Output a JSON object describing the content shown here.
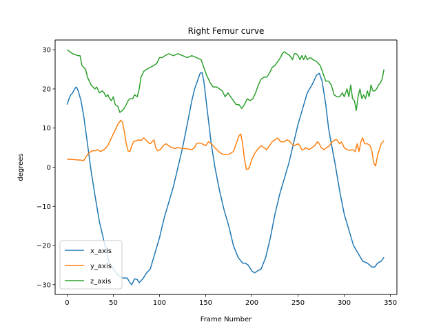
{
  "chart_data": {
    "type": "line",
    "title": "Right Femur curve",
    "xlabel": "Frame Number",
    "ylabel": "degrees",
    "xlim": [
      -13,
      357
    ],
    "ylim": [
      -32.5,
      32.5
    ],
    "xticks": [
      0,
      50,
      100,
      150,
      200,
      250,
      300,
      350
    ],
    "yticks": [
      -30,
      -20,
      -10,
      0,
      10,
      20,
      30
    ],
    "grid": false,
    "legend_position": "lower-left",
    "series": [
      {
        "name": "x_axis",
        "color": "#1f77b4",
        "points": [
          [
            0,
            16
          ],
          [
            2,
            17.5
          ],
          [
            4,
            18.5
          ],
          [
            6,
            19
          ],
          [
            8,
            20
          ],
          [
            10,
            20.5
          ],
          [
            12,
            19.5
          ],
          [
            15,
            17
          ],
          [
            18,
            13
          ],
          [
            22,
            6
          ],
          [
            26,
            -1
          ],
          [
            30,
            -7
          ],
          [
            35,
            -14
          ],
          [
            40,
            -19
          ],
          [
            45,
            -24
          ],
          [
            50,
            -26
          ],
          [
            55,
            -27.5
          ],
          [
            60,
            -28.3
          ],
          [
            65,
            -28.3
          ],
          [
            68,
            -29.5
          ],
          [
            70,
            -30
          ],
          [
            73,
            -28.5
          ],
          [
            76,
            -28.7
          ],
          [
            78,
            -29.5
          ],
          [
            82,
            -28.5
          ],
          [
            86,
            -27
          ],
          [
            90,
            -26
          ],
          [
            95,
            -22
          ],
          [
            100,
            -18
          ],
          [
            105,
            -13
          ],
          [
            110,
            -9
          ],
          [
            115,
            -5
          ],
          [
            120,
            0
          ],
          [
            125,
            5
          ],
          [
            130,
            11
          ],
          [
            135,
            17
          ],
          [
            138,
            20
          ],
          [
            141,
            22
          ],
          [
            144,
            24
          ],
          [
            146,
            24.2
          ],
          [
            148,
            22
          ],
          [
            150,
            18
          ],
          [
            153,
            12
          ],
          [
            156,
            6
          ],
          [
            160,
            0
          ],
          [
            165,
            -6
          ],
          [
            170,
            -11
          ],
          [
            175,
            -15
          ],
          [
            180,
            -20
          ],
          [
            185,
            -23
          ],
          [
            190,
            -24.5
          ],
          [
            193,
            -24.5
          ],
          [
            196,
            -25
          ],
          [
            200,
            -26.5
          ],
          [
            203,
            -27
          ],
          [
            206,
            -26.5
          ],
          [
            210,
            -26
          ],
          [
            215,
            -23
          ],
          [
            220,
            -18
          ],
          [
            225,
            -12
          ],
          [
            230,
            -7
          ],
          [
            235,
            -3
          ],
          [
            240,
            1
          ],
          [
            245,
            6
          ],
          [
            250,
            11
          ],
          [
            255,
            15
          ],
          [
            260,
            19
          ],
          [
            265,
            21
          ],
          [
            270,
            23.5
          ],
          [
            273,
            24
          ],
          [
            276,
            22
          ],
          [
            280,
            16
          ],
          [
            283,
            10
          ],
          [
            286,
            6
          ],
          [
            290,
            1
          ],
          [
            295,
            -6
          ],
          [
            300,
            -12
          ],
          [
            305,
            -16
          ],
          [
            310,
            -20
          ],
          [
            315,
            -22
          ],
          [
            320,
            -24
          ],
          [
            325,
            -24.5
          ],
          [
            330,
            -25.5
          ],
          [
            333,
            -25.5
          ],
          [
            336,
            -24.5
          ],
          [
            340,
            -24
          ],
          [
            343,
            -23
          ]
        ]
      },
      {
        "name": "y_axis",
        "color": "#ff7f0e",
        "points": [
          [
            0,
            2
          ],
          [
            5,
            2
          ],
          [
            10,
            1.9
          ],
          [
            15,
            1.8
          ],
          [
            18,
            1.7
          ],
          [
            20,
            2.5
          ],
          [
            23,
            3.5
          ],
          [
            27,
            4.2
          ],
          [
            30,
            4.2
          ],
          [
            33,
            4.5
          ],
          [
            36,
            4
          ],
          [
            40,
            4.5
          ],
          [
            44,
            5.5
          ],
          [
            48,
            7.5
          ],
          [
            52,
            9.5
          ],
          [
            55,
            11
          ],
          [
            58,
            12
          ],
          [
            60,
            11.5
          ],
          [
            62,
            9
          ],
          [
            64,
            6
          ],
          [
            66,
            4.2
          ],
          [
            68,
            4
          ],
          [
            70,
            5.5
          ],
          [
            72,
            6.5
          ],
          [
            75,
            6.8
          ],
          [
            78,
            7
          ],
          [
            80,
            6.8
          ],
          [
            83,
            7.5
          ],
          [
            85,
            7
          ],
          [
            87,
            6.5
          ],
          [
            90,
            6
          ],
          [
            94,
            7
          ],
          [
            96,
            5
          ],
          [
            98,
            4.2
          ],
          [
            101,
            4.5
          ],
          [
            104,
            5.5
          ],
          [
            107,
            6
          ],
          [
            110,
            5.5
          ],
          [
            113,
            5
          ],
          [
            117,
            4.8
          ],
          [
            120,
            5
          ],
          [
            125,
            4.8
          ],
          [
            130,
            4.7
          ],
          [
            135,
            4.5
          ],
          [
            138,
            5
          ],
          [
            140,
            6
          ],
          [
            143,
            6.2
          ],
          [
            146,
            6
          ],
          [
            150,
            5.5
          ],
          [
            153,
            6.5
          ],
          [
            156,
            6
          ],
          [
            160,
            5
          ],
          [
            164,
            4
          ],
          [
            167,
            3.5
          ],
          [
            170,
            3.2
          ],
          [
            175,
            3.3
          ],
          [
            180,
            4
          ],
          [
            183,
            6
          ],
          [
            186,
            8
          ],
          [
            188,
            8.5
          ],
          [
            190,
            6
          ],
          [
            192,
            2
          ],
          [
            194,
            -0.5
          ],
          [
            196,
            -0.5
          ],
          [
            198,
            0.5
          ],
          [
            200,
            2
          ],
          [
            203,
            3.5
          ],
          [
            206,
            4.5
          ],
          [
            210,
            5.5
          ],
          [
            213,
            5
          ],
          [
            216,
            4.5
          ],
          [
            219,
            5.5
          ],
          [
            222,
            6.5
          ],
          [
            225,
            7
          ],
          [
            228,
            7.5
          ],
          [
            231,
            6.5
          ],
          [
            235,
            6.5
          ],
          [
            238,
            7
          ],
          [
            240,
            6.8
          ],
          [
            243,
            6
          ],
          [
            246,
            5.5
          ],
          [
            250,
            6
          ],
          [
            252,
            5.5
          ],
          [
            254,
            4.5
          ],
          [
            256,
            4.5
          ],
          [
            258,
            5
          ],
          [
            262,
            4.5
          ],
          [
            265,
            5
          ],
          [
            268,
            5.5
          ],
          [
            271,
            6.5
          ],
          [
            273,
            6
          ],
          [
            275,
            5
          ],
          [
            278,
            4.5
          ],
          [
            281,
            5
          ],
          [
            284,
            5.5
          ],
          [
            287,
            6.5
          ],
          [
            290,
            7
          ],
          [
            292,
            7
          ],
          [
            295,
            6
          ],
          [
            297,
            6.5
          ],
          [
            300,
            5
          ],
          [
            303,
            4.5
          ],
          [
            306,
            4.3
          ],
          [
            309,
            4.5
          ],
          [
            312,
            4
          ],
          [
            314,
            6
          ],
          [
            316,
            4
          ],
          [
            318,
            6.5
          ],
          [
            320,
            7.5
          ],
          [
            322,
            6
          ],
          [
            325,
            6
          ],
          [
            328,
            5.5
          ],
          [
            330,
            4
          ],
          [
            332,
            1
          ],
          [
            334,
            0.3
          ],
          [
            336,
            3
          ],
          [
            338,
            4.5
          ],
          [
            340,
            6
          ],
          [
            343,
            6.8
          ]
        ]
      },
      {
        "name": "z_axis",
        "color": "#2ca02c",
        "points": [
          [
            0,
            30
          ],
          [
            3,
            29.5
          ],
          [
            6,
            29
          ],
          [
            8,
            28.8
          ],
          [
            12,
            28.5
          ],
          [
            14,
            28.5
          ],
          [
            16,
            26
          ],
          [
            18,
            25.5
          ],
          [
            20,
            25
          ],
          [
            22,
            23
          ],
          [
            24,
            22
          ],
          [
            26,
            21
          ],
          [
            28,
            20.5
          ],
          [
            30,
            20
          ],
          [
            32,
            20.5
          ],
          [
            35,
            19
          ],
          [
            38,
            19.5
          ],
          [
            40,
            19
          ],
          [
            42,
            18
          ],
          [
            44,
            18.5
          ],
          [
            46,
            17.5
          ],
          [
            48,
            17
          ],
          [
            50,
            18
          ],
          [
            52,
            16
          ],
          [
            55,
            15.5
          ],
          [
            57,
            14
          ],
          [
            60,
            14.5
          ],
          [
            63,
            15.5
          ],
          [
            66,
            17
          ],
          [
            68,
            17.5
          ],
          [
            71,
            17.5
          ],
          [
            73,
            18.5
          ],
          [
            76,
            18
          ],
          [
            78,
            20
          ],
          [
            80,
            23
          ],
          [
            83,
            24.5
          ],
          [
            86,
            25
          ],
          [
            90,
            25.5
          ],
          [
            94,
            26
          ],
          [
            97,
            26.5
          ],
          [
            100,
            28
          ],
          [
            103,
            28
          ],
          [
            106,
            28.5
          ],
          [
            110,
            29
          ],
          [
            115,
            28.5
          ],
          [
            120,
            29
          ],
          [
            125,
            28.5
          ],
          [
            130,
            28
          ],
          [
            135,
            28.5
          ],
          [
            140,
            28
          ],
          [
            145,
            27.5
          ],
          [
            148,
            25.5
          ],
          [
            151,
            23.5
          ],
          [
            155,
            21.5
          ],
          [
            158,
            20.5
          ],
          [
            162,
            20.5
          ],
          [
            165,
            20
          ],
          [
            168,
            19.5
          ],
          [
            171,
            18
          ],
          [
            174,
            19
          ],
          [
            177,
            18
          ],
          [
            180,
            17
          ],
          [
            183,
            16
          ],
          [
            186,
            16
          ],
          [
            189,
            15
          ],
          [
            192,
            16
          ],
          [
            195,
            17.5
          ],
          [
            198,
            17
          ],
          [
            201,
            17.5
          ],
          [
            204,
            19
          ],
          [
            207,
            21
          ],
          [
            210,
            22.5
          ],
          [
            213,
            23
          ],
          [
            216,
            23
          ],
          [
            219,
            24
          ],
          [
            222,
            25.5
          ],
          [
            225,
            26
          ],
          [
            228,
            27
          ],
          [
            231,
            28
          ],
          [
            233,
            29
          ],
          [
            235,
            29.5
          ],
          [
            238,
            29
          ],
          [
            241,
            28.5
          ],
          [
            244,
            27.5
          ],
          [
            246,
            29
          ],
          [
            248,
            29
          ],
          [
            250,
            28.5
          ],
          [
            252,
            27.5
          ],
          [
            254,
            28.5
          ],
          [
            256,
            27.5
          ],
          [
            258,
            28.5
          ],
          [
            260,
            27.5
          ],
          [
            263,
            28
          ],
          [
            266,
            27.5
          ],
          [
            270,
            27
          ],
          [
            274,
            26
          ],
          [
            277,
            24
          ],
          [
            280,
            22
          ],
          [
            283,
            22
          ],
          [
            286,
            21
          ],
          [
            289,
            18.5
          ],
          [
            292,
            18
          ],
          [
            295,
            18
          ],
          [
            298,
            19
          ],
          [
            300,
            18
          ],
          [
            303,
            20
          ],
          [
            305,
            18
          ],
          [
            307,
            21
          ],
          [
            309,
            17.5
          ],
          [
            311,
            17
          ],
          [
            313,
            14.5
          ],
          [
            315,
            18
          ],
          [
            317,
            20
          ],
          [
            319,
            17.5
          ],
          [
            321,
            18.5
          ],
          [
            323,
            17.5
          ],
          [
            325,
            19.5
          ],
          [
            327,
            18
          ],
          [
            329,
            21
          ],
          [
            331,
            19.5
          ],
          [
            333,
            19.5
          ],
          [
            335,
            20
          ],
          [
            337,
            21
          ],
          [
            339,
            21.5
          ],
          [
            341,
            22.5
          ],
          [
            343,
            25
          ]
        ]
      }
    ]
  }
}
